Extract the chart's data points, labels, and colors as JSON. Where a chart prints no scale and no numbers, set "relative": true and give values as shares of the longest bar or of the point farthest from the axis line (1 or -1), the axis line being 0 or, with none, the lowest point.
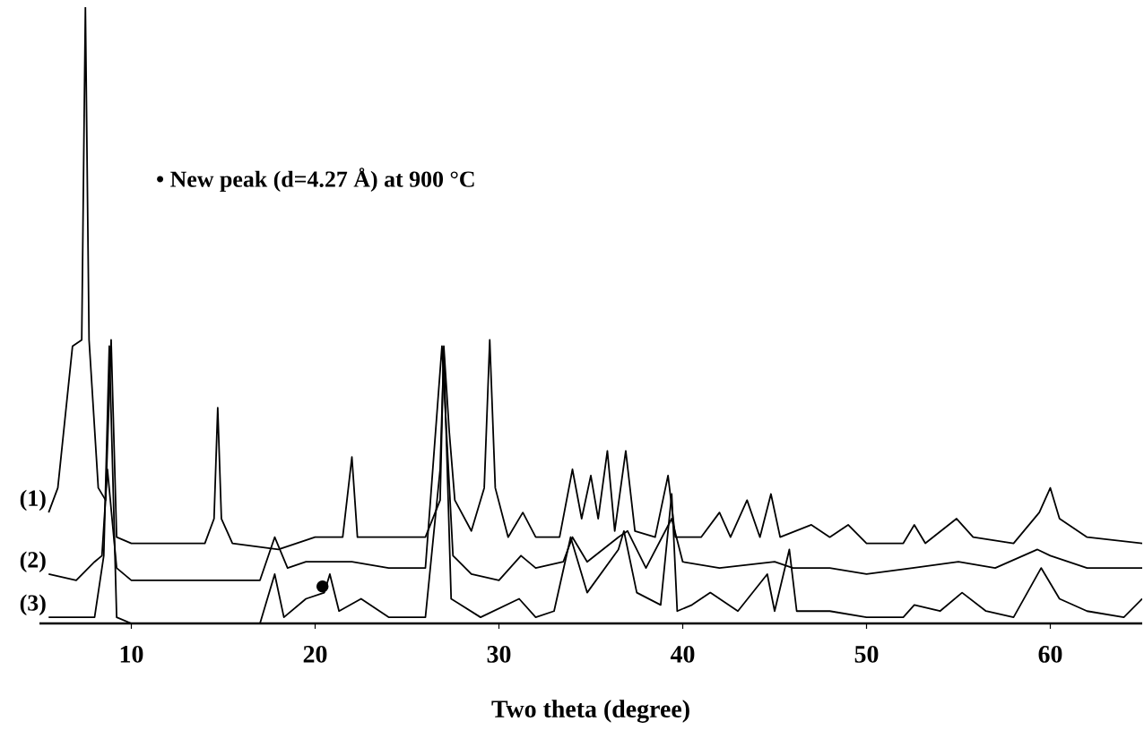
{
  "chart_data": {
    "type": "line",
    "relative": true,
    "xlabel": "Two theta (degree)",
    "xlim": [
      5,
      65
    ],
    "xticks": [
      10,
      20,
      30,
      40,
      50,
      60
    ],
    "legend": false,
    "line_style": "solid",
    "annotations": [
      "• New peak (d=4.27 Å) at 900 °C"
    ],
    "series": [
      {
        "name": "(1)",
        "color": "#000000",
        "x": [
          5.5,
          6.0,
          6.8,
          7.3,
          7.5,
          7.7,
          8.2,
          8.6,
          8.9,
          9.2,
          10,
          12,
          14,
          14.5,
          14.7,
          14.9,
          15.5,
          18,
          20,
          21.5,
          22.0,
          22.3,
          24,
          26,
          26.8,
          27.0,
          27.3,
          27.6,
          28.5,
          29.2,
          29.5,
          29.8,
          30.5,
          31.3,
          32,
          33.3,
          34.0,
          34.5,
          35.0,
          35.4,
          35.9,
          36.3,
          36.9,
          37.4,
          38.5,
          39.2,
          39.6,
          41,
          42.0,
          42.6,
          43.5,
          44.2,
          44.8,
          45.3,
          47,
          48,
          49,
          50,
          52,
          52.6,
          53.2,
          54.9,
          55.8,
          58,
          59.4,
          60.0,
          60.5,
          62,
          65
        ],
        "values": [
          0.18,
          0.22,
          0.45,
          0.46,
          1.0,
          0.46,
          0.22,
          0.2,
          0.46,
          0.14,
          0.13,
          0.13,
          0.13,
          0.17,
          0.35,
          0.17,
          0.13,
          0.12,
          0.14,
          0.14,
          0.27,
          0.14,
          0.14,
          0.14,
          0.2,
          0.45,
          0.31,
          0.2,
          0.15,
          0.22,
          0.46,
          0.22,
          0.14,
          0.18,
          0.14,
          0.14,
          0.25,
          0.17,
          0.24,
          0.17,
          0.28,
          0.15,
          0.28,
          0.15,
          0.14,
          0.24,
          0.14,
          0.14,
          0.18,
          0.14,
          0.2,
          0.14,
          0.21,
          0.14,
          0.16,
          0.14,
          0.16,
          0.13,
          0.13,
          0.16,
          0.13,
          0.17,
          0.14,
          0.13,
          0.18,
          0.22,
          0.17,
          0.14,
          0.13
        ]
      },
      {
        "name": "(2)",
        "color": "#000000",
        "x": [
          5.5,
          7,
          8.0,
          8.4,
          8.7,
          9.2,
          10,
          17,
          17.8,
          18.5,
          19.5,
          22,
          24,
          26,
          26.9,
          27.5,
          28.5,
          30,
          31.2,
          32,
          33.5,
          34.0,
          34.8,
          36.5,
          37.0,
          38,
          39.4,
          40,
          42,
          45,
          46,
          48,
          50,
          52.5,
          55,
          57,
          59.3,
          60,
          62,
          65
        ],
        "values": [
          0.08,
          0.07,
          0.1,
          0.11,
          0.25,
          0.09,
          0.07,
          0.07,
          0.14,
          0.09,
          0.1,
          0.1,
          0.09,
          0.09,
          0.45,
          0.11,
          0.08,
          0.07,
          0.11,
          0.09,
          0.1,
          0.14,
          0.1,
          0.14,
          0.15,
          0.09,
          0.17,
          0.1,
          0.09,
          0.1,
          0.09,
          0.09,
          0.08,
          0.09,
          0.1,
          0.09,
          0.12,
          0.11,
          0.09,
          0.09
        ]
      },
      {
        "name": "(3)",
        "color": "#000000",
        "x": [
          5.5,
          8.0,
          8.5,
          8.8,
          9.2,
          10,
          17,
          17.8,
          18.3,
          19.5,
          20.5,
          20.8,
          21.3,
          22.5,
          24,
          26,
          26.8,
          27.0,
          27.4,
          29,
          31.1,
          32,
          33,
          33.9,
          34.8,
          36.5,
          36.8,
          37.5,
          38.8,
          39.4,
          39.7,
          40.5,
          41.5,
          43,
          44.6,
          45.0,
          45.8,
          46.2,
          48,
          50,
          52,
          52.6,
          54,
          55.2,
          56.5,
          58,
          59.5,
          60.5,
          62,
          64,
          65
        ],
        "values": [
          0.01,
          0.01,
          0.11,
          0.45,
          0.01,
          0,
          0,
          0.08,
          0.01,
          0.04,
          0.05,
          0.08,
          0.02,
          0.04,
          0.01,
          0.01,
          0.25,
          0.44,
          0.04,
          0.01,
          0.04,
          0.01,
          0.02,
          0.14,
          0.05,
          0.12,
          0.15,
          0.05,
          0.03,
          0.21,
          0.02,
          0.03,
          0.05,
          0.02,
          0.08,
          0.02,
          0.12,
          0.02,
          0.02,
          0.01,
          0.01,
          0.03,
          0.02,
          0.05,
          0.02,
          0.01,
          0.09,
          0.04,
          0.02,
          0.01,
          0.04
        ]
      },
      {
        "type": "scatter",
        "color": "#000000",
        "marker": "circle",
        "x": [
          20.4
        ],
        "values": [
          0.06
        ]
      }
    ]
  }
}
